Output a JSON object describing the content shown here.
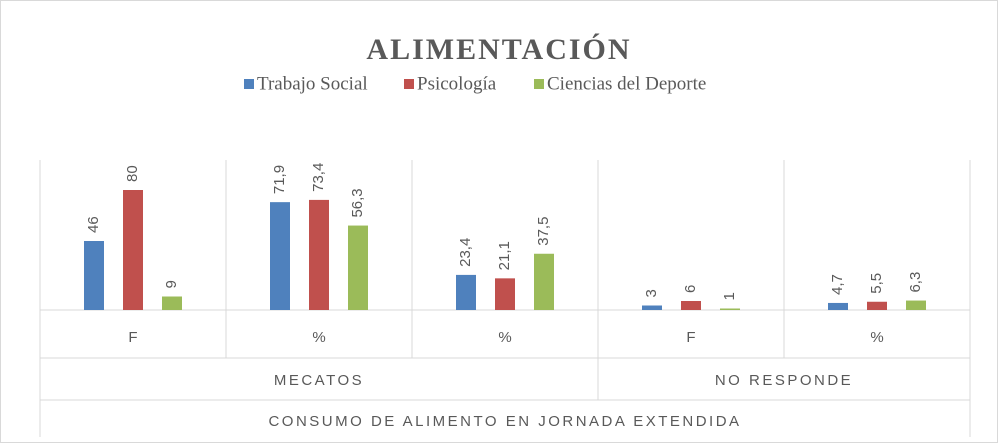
{
  "chart_data": {
    "type": "bar",
    "title": "ALIMENTACIÓN",
    "x_label": "CONSUMO DE ALIMENTO EN JORNADA EXTENDIDA",
    "groups": [
      {
        "name": "MECATOS",
        "categories": [
          "F",
          "%",
          "%"
        ]
      },
      {
        "name": "NO RESPONDE",
        "categories": [
          "F",
          "%"
        ]
      }
    ],
    "series": [
      {
        "name": "Trabajo Social",
        "color": "#4f81bd",
        "values": [
          46,
          71.9,
          23.4,
          3,
          4.7
        ],
        "value_labels": [
          "46",
          "71,9",
          "23,4",
          "3",
          "4,7"
        ]
      },
      {
        "name": "Psicología",
        "color": "#c0504d",
        "values": [
          80,
          73.4,
          21.1,
          6,
          5.5
        ],
        "value_labels": [
          "80",
          "73,4",
          "21,1",
          "6",
          "5,5"
        ]
      },
      {
        "name": "Ciencias del Deporte",
        "color": "#9bbb59",
        "values": [
          9,
          56.3,
          37.5,
          1,
          6.3
        ],
        "value_labels": [
          "9",
          "56,3",
          "37,5",
          "1",
          "6,3"
        ]
      }
    ],
    "ylim": [
      0,
      100
    ],
    "legend": "top"
  }
}
